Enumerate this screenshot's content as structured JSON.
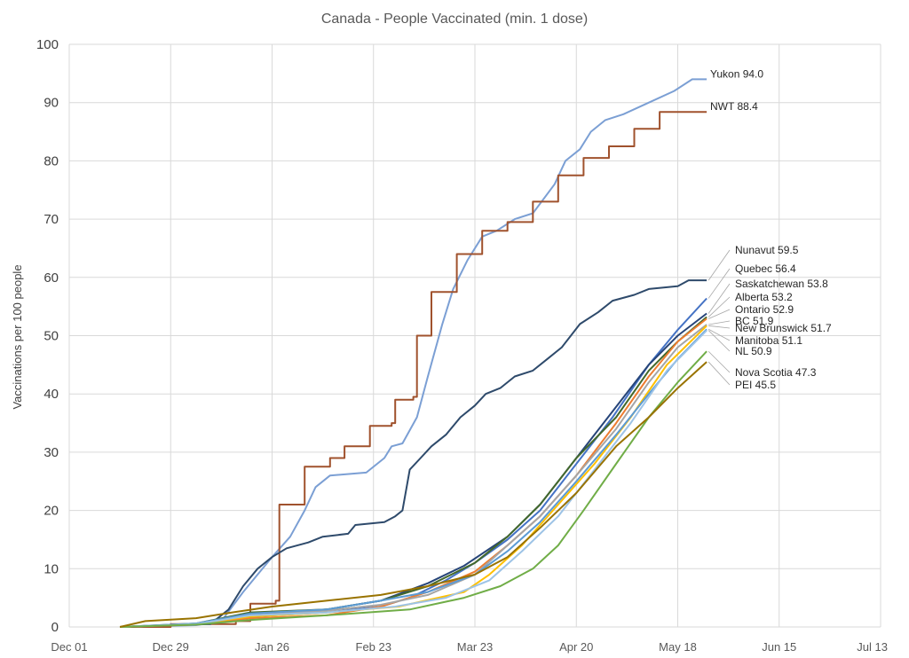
{
  "chart_data": {
    "type": "line",
    "title": "Canada - People Vaccinated (min. 1 dose)",
    "ylabel": "Vaccinations per 100 people",
    "xlabel": "",
    "ylim": [
      0,
      100
    ],
    "yticks": [
      0,
      10,
      20,
      30,
      40,
      50,
      60,
      70,
      80,
      90,
      100
    ],
    "x_axis": {
      "start": "2020-12-01",
      "end": "2021-07-13",
      "ticks": [
        {
          "date": "2020-12-01",
          "label": "Dec 01"
        },
        {
          "date": "2020-12-29",
          "label": "Dec 29"
        },
        {
          "date": "2021-01-26",
          "label": "Jan 26"
        },
        {
          "date": "2021-02-23",
          "label": "Feb 23"
        },
        {
          "date": "2021-03-23",
          "label": "Mar 23"
        },
        {
          "date": "2021-04-20",
          "label": "Apr 20"
        },
        {
          "date": "2021-05-18",
          "label": "May 18"
        },
        {
          "date": "2021-06-15",
          "label": "Jun 15"
        },
        {
          "date": "2021-07-13",
          "label": "Jul 13"
        }
      ]
    },
    "grid": true,
    "series": [
      {
        "name": "Yukon",
        "end_label": "Yukon 94.0",
        "color": "#7b9fd4",
        "step": false,
        "points": [
          [
            "2020-12-15",
            0
          ],
          [
            "2021-01-05",
            0.3
          ],
          [
            "2021-01-12",
            1
          ],
          [
            "2021-01-18",
            6
          ],
          [
            "2021-01-22",
            9
          ],
          [
            "2021-01-26",
            12
          ],
          [
            "2021-01-31",
            15.5
          ],
          [
            "2021-02-04",
            20
          ],
          [
            "2021-02-07",
            24
          ],
          [
            "2021-02-11",
            26
          ],
          [
            "2021-02-21",
            26.5
          ],
          [
            "2021-02-26",
            29
          ],
          [
            "2021-02-28",
            31
          ],
          [
            "2021-03-03",
            31.5
          ],
          [
            "2021-03-07",
            36
          ],
          [
            "2021-03-10",
            43
          ],
          [
            "2021-03-14",
            52
          ],
          [
            "2021-03-17",
            58
          ],
          [
            "2021-03-21",
            63
          ],
          [
            "2021-03-25",
            67
          ],
          [
            "2021-03-29",
            68
          ],
          [
            "2021-04-03",
            70
          ],
          [
            "2021-04-08",
            71
          ],
          [
            "2021-04-14",
            76
          ],
          [
            "2021-04-17",
            80
          ],
          [
            "2021-04-21",
            82
          ],
          [
            "2021-04-24",
            85
          ],
          [
            "2021-04-28",
            87
          ],
          [
            "2021-05-03",
            88
          ],
          [
            "2021-05-10",
            90
          ],
          [
            "2021-05-17",
            92
          ],
          [
            "2021-05-22",
            94
          ],
          [
            "2021-05-26",
            94
          ]
        ]
      },
      {
        "name": "NWT",
        "end_label": "NWT 88.4",
        "color": "#a0522d",
        "step": true,
        "points": [
          [
            "2020-12-15",
            0
          ],
          [
            "2020-12-29",
            0.5
          ],
          [
            "2021-01-16",
            1
          ],
          [
            "2021-01-20",
            4
          ],
          [
            "2021-01-27",
            4.5
          ],
          [
            "2021-01-28",
            21
          ],
          [
            "2021-02-04",
            27.5
          ],
          [
            "2021-02-11",
            29
          ],
          [
            "2021-02-15",
            31
          ],
          [
            "2021-02-21",
            31
          ],
          [
            "2021-02-22",
            34.5
          ],
          [
            "2021-02-28",
            35
          ],
          [
            "2021-03-01",
            39
          ],
          [
            "2021-03-06",
            39.5
          ],
          [
            "2021-03-07",
            50
          ],
          [
            "2021-03-11",
            57.5
          ],
          [
            "2021-03-18",
            64
          ],
          [
            "2021-03-25",
            68
          ],
          [
            "2021-04-01",
            69.5
          ],
          [
            "2021-04-08",
            73
          ],
          [
            "2021-04-15",
            77.5
          ],
          [
            "2021-04-22",
            80.5
          ],
          [
            "2021-04-29",
            82.5
          ],
          [
            "2021-05-06",
            85.5
          ],
          [
            "2021-05-13",
            88.4
          ],
          [
            "2021-05-26",
            88.4
          ]
        ]
      },
      {
        "name": "Nunavut",
        "end_label": "Nunavut 59.5",
        "color": "#2e4a6b",
        "step": false,
        "points": [
          [
            "2020-12-15",
            0
          ],
          [
            "2021-01-09",
            0.5
          ],
          [
            "2021-01-14",
            3
          ],
          [
            "2021-01-18",
            7
          ],
          [
            "2021-01-22",
            10
          ],
          [
            "2021-01-26",
            12
          ],
          [
            "2021-01-30",
            13.5
          ],
          [
            "2021-02-05",
            14.5
          ],
          [
            "2021-02-09",
            15.5
          ],
          [
            "2021-02-16",
            16
          ],
          [
            "2021-02-18",
            17.5
          ],
          [
            "2021-02-26",
            18
          ],
          [
            "2021-03-01",
            19
          ],
          [
            "2021-03-03",
            20
          ],
          [
            "2021-03-05",
            27
          ],
          [
            "2021-03-08",
            29
          ],
          [
            "2021-03-11",
            31
          ],
          [
            "2021-03-15",
            33
          ],
          [
            "2021-03-19",
            36
          ],
          [
            "2021-03-23",
            38
          ],
          [
            "2021-03-26",
            40
          ],
          [
            "2021-03-30",
            41
          ],
          [
            "2021-04-03",
            43
          ],
          [
            "2021-04-08",
            44
          ],
          [
            "2021-04-12",
            46
          ],
          [
            "2021-04-16",
            48
          ],
          [
            "2021-04-21",
            52
          ],
          [
            "2021-04-26",
            54
          ],
          [
            "2021-04-30",
            56
          ],
          [
            "2021-05-06",
            57
          ],
          [
            "2021-05-10",
            58
          ],
          [
            "2021-05-18",
            58.5
          ],
          [
            "2021-05-21",
            59.5
          ],
          [
            "2021-05-26",
            59.5
          ]
        ]
      },
      {
        "name": "Quebec",
        "end_label": "Quebec 56.4",
        "color": "#4472c4",
        "step": false,
        "points": [
          [
            "2020-12-15",
            0
          ],
          [
            "2021-01-05",
            0.5
          ],
          [
            "2021-01-15",
            1.5
          ],
          [
            "2021-01-26",
            2
          ],
          [
            "2021-02-10",
            2.5
          ],
          [
            "2021-02-25",
            3.5
          ],
          [
            "2021-03-05",
            5
          ],
          [
            "2021-03-15",
            8
          ],
          [
            "2021-03-23",
            11
          ],
          [
            "2021-04-01",
            15
          ],
          [
            "2021-04-10",
            20
          ],
          [
            "2021-04-20",
            28
          ],
          [
            "2021-04-30",
            36
          ],
          [
            "2021-05-10",
            45
          ],
          [
            "2021-05-18",
            51
          ],
          [
            "2021-05-26",
            56.4
          ]
        ]
      },
      {
        "name": "Saskatchewan",
        "end_label": "Saskatchewan 53.8",
        "color": "#264478",
        "step": false,
        "points": [
          [
            "2020-12-15",
            0
          ],
          [
            "2021-01-05",
            0.5
          ],
          [
            "2021-01-20",
            2
          ],
          [
            "2021-02-10",
            3
          ],
          [
            "2021-02-25",
            4.5
          ],
          [
            "2021-03-10",
            7.5
          ],
          [
            "2021-03-20",
            10.5
          ],
          [
            "2021-04-01",
            15.5
          ],
          [
            "2021-04-10",
            21
          ],
          [
            "2021-04-20",
            29
          ],
          [
            "2021-04-30",
            37
          ],
          [
            "2021-05-10",
            45
          ],
          [
            "2021-05-18",
            50
          ],
          [
            "2021-05-26",
            53.8
          ]
        ]
      },
      {
        "name": "Alberta",
        "end_label": "Alberta 53.2",
        "color": "#43682b",
        "step": false,
        "points": [
          [
            "2020-12-15",
            0
          ],
          [
            "2021-01-05",
            0.6
          ],
          [
            "2021-01-20",
            2.5
          ],
          [
            "2021-02-10",
            3
          ],
          [
            "2021-02-25",
            4.5
          ],
          [
            "2021-03-10",
            7
          ],
          [
            "2021-03-23",
            11
          ],
          [
            "2021-04-01",
            15.5
          ],
          [
            "2021-04-10",
            21
          ],
          [
            "2021-04-20",
            29
          ],
          [
            "2021-05-01",
            36
          ],
          [
            "2021-05-10",
            44
          ],
          [
            "2021-05-18",
            49
          ],
          [
            "2021-05-26",
            53.2
          ]
        ]
      },
      {
        "name": "Ontario",
        "end_label": "Ontario 52.9",
        "color": "#ed7d31",
        "step": false,
        "points": [
          [
            "2020-12-15",
            0
          ],
          [
            "2021-01-05",
            0.4
          ],
          [
            "2021-01-20",
            1.5
          ],
          [
            "2021-02-10",
            2
          ],
          [
            "2021-02-25",
            3.5
          ],
          [
            "2021-03-10",
            6
          ],
          [
            "2021-03-23",
            9.5
          ],
          [
            "2021-04-01",
            14
          ],
          [
            "2021-04-10",
            19
          ],
          [
            "2021-04-20",
            26
          ],
          [
            "2021-05-01",
            35
          ],
          [
            "2021-05-10",
            43
          ],
          [
            "2021-05-18",
            49
          ],
          [
            "2021-05-26",
            52.9
          ]
        ]
      },
      {
        "name": "BC",
        "end_label": "BC 51.9",
        "color": "#a5a5a5",
        "step": false,
        "points": [
          [
            "2020-12-15",
            0
          ],
          [
            "2021-01-05",
            0.5
          ],
          [
            "2021-01-20",
            2
          ],
          [
            "2021-02-10",
            2.8
          ],
          [
            "2021-02-25",
            3.8
          ],
          [
            "2021-03-10",
            5.5
          ],
          [
            "2021-03-23",
            9
          ],
          [
            "2021-04-01",
            14
          ],
          [
            "2021-04-10",
            19
          ],
          [
            "2021-04-20",
            26
          ],
          [
            "2021-05-01",
            34
          ],
          [
            "2021-05-10",
            42
          ],
          [
            "2021-05-18",
            48
          ],
          [
            "2021-05-26",
            51.9
          ]
        ]
      },
      {
        "name": "New Brunswick",
        "end_label": "New Brunswick 51.7",
        "color": "#ffc000",
        "step": false,
        "points": [
          [
            "2020-12-15",
            0
          ],
          [
            "2021-01-05",
            0.5
          ],
          [
            "2021-01-20",
            1.8
          ],
          [
            "2021-02-10",
            2.5
          ],
          [
            "2021-03-02",
            3.5
          ],
          [
            "2021-03-20",
            6
          ],
          [
            "2021-03-27",
            9
          ],
          [
            "2021-04-05",
            14
          ],
          [
            "2021-04-15",
            21
          ],
          [
            "2021-04-25",
            28
          ],
          [
            "2021-05-05",
            36
          ],
          [
            "2021-05-15",
            45
          ],
          [
            "2021-05-26",
            51.7
          ]
        ]
      },
      {
        "name": "Manitoba",
        "end_label": "Manitoba 51.1",
        "color": "#5b9bd5",
        "step": false,
        "points": [
          [
            "2020-12-15",
            0
          ],
          [
            "2021-01-05",
            0.6
          ],
          [
            "2021-01-20",
            2.3
          ],
          [
            "2021-02-10",
            3
          ],
          [
            "2021-02-25",
            4.5
          ],
          [
            "2021-03-10",
            6
          ],
          [
            "2021-03-23",
            9
          ],
          [
            "2021-04-01",
            13
          ],
          [
            "2021-04-10",
            18
          ],
          [
            "2021-04-20",
            25
          ],
          [
            "2021-05-01",
            33
          ],
          [
            "2021-05-10",
            40
          ],
          [
            "2021-05-18",
            46
          ],
          [
            "2021-05-26",
            51.1
          ]
        ]
      },
      {
        "name": "NL",
        "end_label": "NL 50.9",
        "color": "#9dc3e6",
        "step": false,
        "points": [
          [
            "2020-12-15",
            0
          ],
          [
            "2021-01-05",
            0.5
          ],
          [
            "2021-01-20",
            2
          ],
          [
            "2021-02-10",
            2.5
          ],
          [
            "2021-03-01",
            3.5
          ],
          [
            "2021-03-15",
            5
          ],
          [
            "2021-03-27",
            8
          ],
          [
            "2021-04-05",
            13
          ],
          [
            "2021-04-15",
            19
          ],
          [
            "2021-04-25",
            27
          ],
          [
            "2021-05-05",
            35
          ],
          [
            "2021-05-15",
            44
          ],
          [
            "2021-05-26",
            50.9
          ]
        ]
      },
      {
        "name": "Nova Scotia",
        "end_label": "Nova Scotia 47.3",
        "color": "#70ad47",
        "step": false,
        "points": [
          [
            "2020-12-15",
            0
          ],
          [
            "2021-01-05",
            0.4
          ],
          [
            "2021-01-20",
            1.2
          ],
          [
            "2021-02-10",
            2
          ],
          [
            "2021-03-05",
            3
          ],
          [
            "2021-03-20",
            5
          ],
          [
            "2021-03-30",
            7
          ],
          [
            "2021-04-08",
            10
          ],
          [
            "2021-04-15",
            14
          ],
          [
            "2021-04-22",
            20
          ],
          [
            "2021-05-01",
            28
          ],
          [
            "2021-05-10",
            36
          ],
          [
            "2021-05-18",
            42
          ],
          [
            "2021-05-26",
            47.3
          ]
        ]
      },
      {
        "name": "PEI",
        "end_label": "PEI 45.5",
        "color": "#997300",
        "step": false,
        "points": [
          [
            "2020-12-15",
            0
          ],
          [
            "2020-12-22",
            1
          ],
          [
            "2021-01-05",
            1.5
          ],
          [
            "2021-01-15",
            2.5
          ],
          [
            "2021-01-26",
            3.5
          ],
          [
            "2021-02-10",
            4.5
          ],
          [
            "2021-02-25",
            5.5
          ],
          [
            "2021-03-10",
            7
          ],
          [
            "2021-03-23",
            9
          ],
          [
            "2021-04-01",
            12
          ],
          [
            "2021-04-10",
            17
          ],
          [
            "2021-04-20",
            23
          ],
          [
            "2021-05-01",
            31
          ],
          [
            "2021-05-10",
            36
          ],
          [
            "2021-05-18",
            41
          ],
          [
            "2021-05-26",
            45.5
          ]
        ]
      }
    ]
  }
}
